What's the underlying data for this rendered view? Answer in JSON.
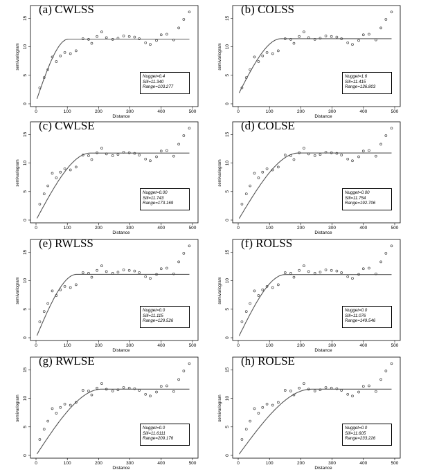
{
  "chart_data": [
    {
      "panel_label": "(a) CWLSS",
      "type": "scatter",
      "xlabel": "Distance",
      "ylabel": "semivariogram",
      "xlim": [
        0,
        500
      ],
      "ylim": [
        0,
        14
      ],
      "x_ticks": [
        0,
        100,
        200,
        300,
        400,
        500
      ],
      "y_ticks": [
        0,
        5,
        10,
        15
      ],
      "fit": {
        "nugget": 0.4,
        "sill": 11.34,
        "range": 103.277
      },
      "fit_text": [
        "Nugget=0.4",
        "Sill=11.340",
        "Range=103.277"
      ],
      "points": [
        [
          12,
          2.8
        ],
        [
          26,
          4.6
        ],
        [
          38,
          6
        ],
        [
          52,
          8.2
        ],
        [
          65,
          7.4
        ],
        [
          78,
          8.4
        ],
        [
          92,
          9
        ],
        [
          110,
          8.8
        ],
        [
          128,
          9.3
        ],
        [
          150,
          11.4
        ],
        [
          168,
          11.3
        ],
        [
          178,
          10.6
        ],
        [
          195,
          11.8
        ],
        [
          210,
          12.6
        ],
        [
          225,
          11.6
        ],
        [
          245,
          11.3
        ],
        [
          262,
          11.5
        ],
        [
          280,
          11.9
        ],
        [
          298,
          11.8
        ],
        [
          315,
          11.7
        ],
        [
          330,
          11.4
        ],
        [
          350,
          10.7
        ],
        [
          365,
          10.4
        ],
        [
          385,
          11.1
        ],
        [
          400,
          12.1
        ],
        [
          418,
          12.2
        ],
        [
          440,
          11.2
        ],
        [
          456,
          13.3
        ],
        [
          472,
          14.8
        ],
        [
          490,
          16.1
        ]
      ]
    },
    {
      "panel_label": "(b) COLSS",
      "type": "scatter",
      "xlabel": "Distance",
      "ylabel": "semivariogram",
      "xlim": [
        0,
        500
      ],
      "ylim": [
        0,
        14
      ],
      "x_ticks": [
        0,
        100,
        200,
        300,
        400,
        500
      ],
      "y_ticks": [
        0,
        5,
        10,
        15
      ],
      "fit": {
        "nugget": 1.6,
        "sill": 11.415,
        "range": 136.803
      },
      "fit_text": [
        "Nugget=1.6",
        "Sill=11.415",
        "Range=136.803"
      ],
      "points": [
        [
          12,
          2.8
        ],
        [
          26,
          4.6
        ],
        [
          38,
          6
        ],
        [
          52,
          8.2
        ],
        [
          65,
          7.4
        ],
        [
          78,
          8.4
        ],
        [
          92,
          9
        ],
        [
          110,
          8.8
        ],
        [
          128,
          9.3
        ],
        [
          150,
          11.4
        ],
        [
          168,
          11.3
        ],
        [
          178,
          10.6
        ],
        [
          195,
          11.8
        ],
        [
          210,
          12.6
        ],
        [
          225,
          11.6
        ],
        [
          245,
          11.3
        ],
        [
          262,
          11.5
        ],
        [
          280,
          11.9
        ],
        [
          298,
          11.8
        ],
        [
          315,
          11.7
        ],
        [
          330,
          11.4
        ],
        [
          350,
          10.7
        ],
        [
          365,
          10.4
        ],
        [
          385,
          11.1
        ],
        [
          400,
          12.1
        ],
        [
          418,
          12.2
        ],
        [
          440,
          11.2
        ],
        [
          456,
          13.3
        ],
        [
          472,
          14.8
        ],
        [
          490,
          16.1
        ]
      ]
    },
    {
      "panel_label": "(c) CWLSE",
      "type": "scatter",
      "xlabel": "Distance",
      "ylabel": "semivariogram",
      "xlim": [
        0,
        500
      ],
      "ylim": [
        0,
        14
      ],
      "x_ticks": [
        0,
        100,
        200,
        300,
        400,
        500
      ],
      "y_ticks": [
        0,
        5,
        10,
        15
      ],
      "fit": {
        "nugget": 0.0,
        "sill": 11.743,
        "range": 173.169
      },
      "fit_text": [
        "Nugget=0.00",
        "Sill=11.743",
        "Range=173.169"
      ],
      "points": [
        [
          12,
          2.8
        ],
        [
          26,
          4.6
        ],
        [
          38,
          6
        ],
        [
          52,
          8.2
        ],
        [
          65,
          7.4
        ],
        [
          78,
          8.4
        ],
        [
          92,
          9
        ],
        [
          110,
          8.8
        ],
        [
          128,
          9.3
        ],
        [
          150,
          11.4
        ],
        [
          168,
          11.3
        ],
        [
          178,
          10.6
        ],
        [
          195,
          11.8
        ],
        [
          210,
          12.6
        ],
        [
          225,
          11.6
        ],
        [
          245,
          11.3
        ],
        [
          262,
          11.5
        ],
        [
          280,
          11.9
        ],
        [
          298,
          11.8
        ],
        [
          315,
          11.7
        ],
        [
          330,
          11.4
        ],
        [
          350,
          10.7
        ],
        [
          365,
          10.4
        ],
        [
          385,
          11.1
        ],
        [
          400,
          12.1
        ],
        [
          418,
          12.2
        ],
        [
          440,
          11.2
        ],
        [
          456,
          13.3
        ],
        [
          472,
          14.8
        ],
        [
          490,
          16.1
        ]
      ]
    },
    {
      "panel_label": "(d) COLSE",
      "type": "scatter",
      "xlabel": "Distance",
      "ylabel": "semivariogram",
      "xlim": [
        0,
        500
      ],
      "ylim": [
        0,
        14
      ],
      "x_ticks": [
        0,
        100,
        200,
        300,
        400,
        500
      ],
      "y_ticks": [
        0,
        5,
        10,
        15
      ],
      "fit": {
        "nugget": 0.0,
        "sill": 11.754,
        "range": 192.706
      },
      "fit_text": [
        "Nugget=0.00",
        "Sill=11.754",
        "Range=192.706"
      ],
      "points": [
        [
          12,
          2.8
        ],
        [
          26,
          4.6
        ],
        [
          38,
          6
        ],
        [
          52,
          8.2
        ],
        [
          65,
          7.4
        ],
        [
          78,
          8.4
        ],
        [
          92,
          9
        ],
        [
          110,
          8.8
        ],
        [
          128,
          9.3
        ],
        [
          150,
          11.4
        ],
        [
          168,
          11.3
        ],
        [
          178,
          10.6
        ],
        [
          195,
          11.8
        ],
        [
          210,
          12.6
        ],
        [
          225,
          11.6
        ],
        [
          245,
          11.3
        ],
        [
          262,
          11.5
        ],
        [
          280,
          11.9
        ],
        [
          298,
          11.8
        ],
        [
          315,
          11.7
        ],
        [
          330,
          11.4
        ],
        [
          350,
          10.7
        ],
        [
          365,
          10.4
        ],
        [
          385,
          11.1
        ],
        [
          400,
          12.1
        ],
        [
          418,
          12.2
        ],
        [
          440,
          11.2
        ],
        [
          456,
          13.3
        ],
        [
          472,
          14.8
        ],
        [
          490,
          16.1
        ]
      ]
    },
    {
      "panel_label": "(e) RWLSS",
      "type": "scatter",
      "xlabel": "Distance",
      "ylabel": "semivariogram",
      "xlim": [
        0,
        500
      ],
      "ylim": [
        0,
        14
      ],
      "x_ticks": [
        0,
        100,
        200,
        300,
        400,
        500
      ],
      "y_ticks": [
        0,
        5,
        10,
        15
      ],
      "fit": {
        "nugget": 0.0,
        "sill": 11.115,
        "range": 129.526
      },
      "fit_text": [
        "Nugget=0.0",
        "Sill=11.115",
        "Range=129.526"
      ],
      "points": [
        [
          12,
          2.8
        ],
        [
          26,
          4.6
        ],
        [
          38,
          6
        ],
        [
          52,
          8.2
        ],
        [
          65,
          7.4
        ],
        [
          78,
          8.4
        ],
        [
          92,
          9
        ],
        [
          110,
          8.8
        ],
        [
          128,
          9.3
        ],
        [
          150,
          11.4
        ],
        [
          168,
          11.3
        ],
        [
          178,
          10.6
        ],
        [
          195,
          11.8
        ],
        [
          210,
          12.6
        ],
        [
          225,
          11.6
        ],
        [
          245,
          11.3
        ],
        [
          262,
          11.5
        ],
        [
          280,
          11.9
        ],
        [
          298,
          11.8
        ],
        [
          315,
          11.7
        ],
        [
          330,
          11.4
        ],
        [
          350,
          10.7
        ],
        [
          365,
          10.4
        ],
        [
          385,
          11.1
        ],
        [
          400,
          12.1
        ],
        [
          418,
          12.2
        ],
        [
          440,
          11.2
        ],
        [
          456,
          13.3
        ],
        [
          472,
          14.8
        ],
        [
          490,
          16.1
        ]
      ]
    },
    {
      "panel_label": "(f) ROLSS",
      "type": "scatter",
      "xlabel": "Distance",
      "ylabel": "semivariogram",
      "xlim": [
        0,
        500
      ],
      "ylim": [
        0,
        14
      ],
      "x_ticks": [
        0,
        100,
        200,
        300,
        400,
        500
      ],
      "y_ticks": [
        0,
        5,
        10,
        15
      ],
      "fit": {
        "nugget": 0.0,
        "sill": 11.076,
        "range": 149.546
      },
      "fit_text": [
        "Nugget=0.0",
        "Sill=11.076",
        "Range=149.546"
      ],
      "points": [
        [
          12,
          2.8
        ],
        [
          26,
          4.6
        ],
        [
          38,
          6
        ],
        [
          52,
          8.2
        ],
        [
          65,
          7.4
        ],
        [
          78,
          8.4
        ],
        [
          92,
          9
        ],
        [
          110,
          8.8
        ],
        [
          128,
          9.3
        ],
        [
          150,
          11.4
        ],
        [
          168,
          11.3
        ],
        [
          178,
          10.6
        ],
        [
          195,
          11.8
        ],
        [
          210,
          12.6
        ],
        [
          225,
          11.6
        ],
        [
          245,
          11.3
        ],
        [
          262,
          11.5
        ],
        [
          280,
          11.9
        ],
        [
          298,
          11.8
        ],
        [
          315,
          11.7
        ],
        [
          330,
          11.4
        ],
        [
          350,
          10.7
        ],
        [
          365,
          10.4
        ],
        [
          385,
          11.1
        ],
        [
          400,
          12.1
        ],
        [
          418,
          12.2
        ],
        [
          440,
          11.2
        ],
        [
          456,
          13.3
        ],
        [
          472,
          14.8
        ],
        [
          490,
          16.1
        ]
      ]
    },
    {
      "panel_label": "(g) RWLSE",
      "type": "scatter",
      "xlabel": "Distance",
      "ylabel": "semivariogram",
      "xlim": [
        0,
        500
      ],
      "ylim": [
        0,
        14
      ],
      "x_ticks": [
        0,
        100,
        200,
        300,
        400,
        500
      ],
      "y_ticks": [
        0,
        5,
        10,
        15
      ],
      "fit": {
        "nugget": 0.0,
        "sill": 11.6111,
        "range": 209.176
      },
      "fit_text": [
        "Nugget=0.0",
        "Sill=11.6111",
        "Range=209.176"
      ],
      "points": [
        [
          12,
          2.8
        ],
        [
          26,
          4.6
        ],
        [
          38,
          6
        ],
        [
          52,
          8.2
        ],
        [
          65,
          7.4
        ],
        [
          78,
          8.4
        ],
        [
          92,
          9
        ],
        [
          110,
          8.8
        ],
        [
          128,
          9.3
        ],
        [
          150,
          11.4
        ],
        [
          168,
          11.3
        ],
        [
          178,
          10.6
        ],
        [
          195,
          11.8
        ],
        [
          210,
          12.6
        ],
        [
          225,
          11.6
        ],
        [
          245,
          11.3
        ],
        [
          262,
          11.5
        ],
        [
          280,
          11.9
        ],
        [
          298,
          11.8
        ],
        [
          315,
          11.7
        ],
        [
          330,
          11.4
        ],
        [
          350,
          10.7
        ],
        [
          365,
          10.4
        ],
        [
          385,
          11.1
        ],
        [
          400,
          12.1
        ],
        [
          418,
          12.2
        ],
        [
          440,
          11.2
        ],
        [
          456,
          13.3
        ],
        [
          472,
          14.8
        ],
        [
          490,
          16.1
        ]
      ]
    },
    {
      "panel_label": "(h) ROLSE",
      "type": "scatter",
      "xlabel": "Distance",
      "ylabel": "semivariogram",
      "xlim": [
        0,
        500
      ],
      "ylim": [
        0,
        14
      ],
      "x_ticks": [
        0,
        100,
        200,
        300,
        400,
        500
      ],
      "y_ticks": [
        0,
        5,
        10,
        15
      ],
      "fit": {
        "nugget": 0.0,
        "sill": 11.605,
        "range": 233.226
      },
      "fit_text": [
        "Nugget=0.0",
        "Sill=11.605",
        "Range=233.226"
      ],
      "points": [
        [
          12,
          2.8
        ],
        [
          26,
          4.6
        ],
        [
          38,
          6
        ],
        [
          52,
          8.2
        ],
        [
          65,
          7.4
        ],
        [
          78,
          8.4
        ],
        [
          92,
          9
        ],
        [
          110,
          8.8
        ],
        [
          128,
          9.3
        ],
        [
          150,
          11.4
        ],
        [
          168,
          11.3
        ],
        [
          178,
          10.6
        ],
        [
          195,
          11.8
        ],
        [
          210,
          12.6
        ],
        [
          225,
          11.6
        ],
        [
          245,
          11.3
        ],
        [
          262,
          11.5
        ],
        [
          280,
          11.9
        ],
        [
          298,
          11.8
        ],
        [
          315,
          11.7
        ],
        [
          330,
          11.4
        ],
        [
          350,
          10.7
        ],
        [
          365,
          10.4
        ],
        [
          385,
          11.1
        ],
        [
          400,
          12.1
        ],
        [
          418,
          12.2
        ],
        [
          440,
          11.2
        ],
        [
          456,
          13.3
        ],
        [
          472,
          14.8
        ],
        [
          490,
          16.1
        ]
      ]
    }
  ]
}
